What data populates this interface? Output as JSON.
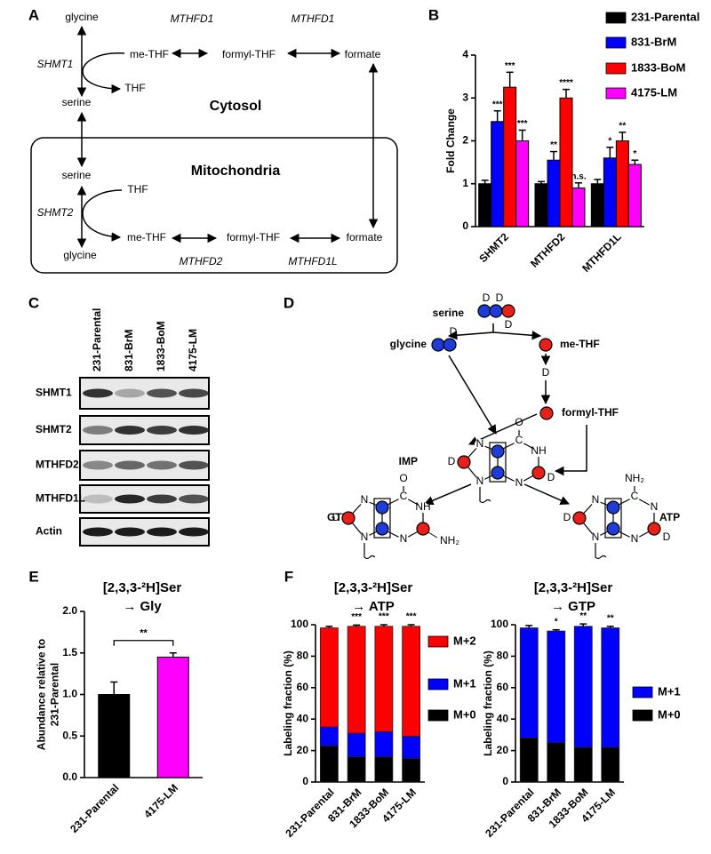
{
  "panel_labels": [
    "A",
    "B",
    "C",
    "D",
    "E",
    "F"
  ],
  "panel_a": {
    "labels": [
      "glycine",
      "me-THF",
      "formyl-THF",
      "formate",
      "MTHFD1",
      "MTHFD1",
      "SHMT1",
      "THF",
      "serine",
      "Cytosol",
      "Mitochondria",
      "serine",
      "THF",
      "SHMT2",
      "me-THF",
      "formyl-THF",
      "formate",
      "glycine",
      "MTHFD2",
      "MTHFD1L"
    ]
  },
  "panel_c": {
    "lanes": [
      "231-Parental",
      "831-BrM",
      "1833-BoM",
      "4175-LM"
    ],
    "proteins": [
      "SHMT1",
      "SHMT2",
      "MTHFD2",
      "MTHFD1L",
      "Actin"
    ]
  },
  "panel_d": {
    "labels": [
      "serine",
      "glycine",
      "me-THF",
      "formyl-THF",
      "IMP",
      "GTP",
      "ATP",
      "D",
      "N",
      "O",
      "C",
      "NH",
      "NH₂"
    ]
  },
  "chart_data": [
    {
      "type": "bar",
      "ylabel": [
        "Fold Change"
      ],
      "categories": [
        "SHMT2",
        "MTHFD2",
        "MTHFD1L"
      ],
      "ylim": [
        0,
        4
      ],
      "yticks": [
        0,
        1,
        2,
        3,
        4
      ],
      "series": [
        {
          "name": "231-Parental",
          "color": "#000000",
          "values": [
            1,
            1,
            1
          ],
          "errors": [
            0.08,
            0.05,
            0.1
          ],
          "annotations": [
            null,
            null,
            null
          ]
        },
        {
          "name": "831-BrM",
          "color": "#0000ff",
          "values": [
            2.45,
            1.55,
            1.6
          ],
          "errors": [
            0.25,
            0.2,
            0.25
          ],
          "annotations": [
            "***",
            "**",
            "*"
          ]
        },
        {
          "name": "1833-BoM",
          "color": "#ff0000",
          "values": [
            3.25,
            3.0,
            2.0
          ],
          "errors": [
            0.35,
            0.2,
            0.2
          ],
          "annotations": [
            "***",
            "****",
            "**"
          ]
        },
        {
          "name": "4175-LM",
          "color": "#ff00ff",
          "values": [
            2.0,
            0.9,
            1.45
          ],
          "errors": [
            0.25,
            0.12,
            0.1
          ],
          "annotations": [
            "***",
            "n.s.",
            "*"
          ]
        }
      ]
    },
    {
      "type": "bar",
      "title": [
        "[2,3,3-²H]Ser",
        "→ Gly"
      ],
      "ylabel": [
        "Abundance relative to",
        "231-Parental"
      ],
      "categories": [
        "231-Parental",
        "4175-LM"
      ],
      "values": [
        1.0,
        1.45
      ],
      "errors": [
        0.15,
        0.05
      ],
      "colors": [
        "#000000",
        "#ff00ff"
      ],
      "ylim": [
        0,
        2.0
      ],
      "yticks": [
        {
          "value": 0,
          "label": "0.0"
        },
        0.5,
        {
          "value": 1,
          "label": "1.0"
        },
        1.5,
        {
          "value": 2,
          "label": "2.0"
        }
      ],
      "comparison": "**"
    },
    {
      "type": "stacked_bar",
      "title": [
        "[2,3,3-²H]Ser",
        "→ ATP"
      ],
      "ylabel": [
        "Labeling fraction (%)"
      ],
      "categories": [
        "231-Parental",
        "831-BrM",
        "1833-BoM",
        "4175-LM"
      ],
      "ylim": [
        0,
        100
      ],
      "yticks": [
        0,
        20,
        40,
        60,
        80,
        100
      ],
      "series": [
        {
          "name": "M+0",
          "color": "#000000",
          "values": [
            23,
            16,
            16,
            15
          ]
        },
        {
          "name": "M+1",
          "color": "#0000ff",
          "values": [
            12,
            15,
            16,
            14
          ]
        },
        {
          "name": "M+2",
          "color": "#ff0000",
          "values": [
            63,
            68,
            67,
            70
          ]
        }
      ],
      "errors": [
        1,
        0.8,
        1,
        1
      ],
      "annotations": [
        null,
        "***",
        "***",
        "***"
      ]
    },
    {
      "type": "stacked_bar",
      "title": [
        "[2,3,3-²H]Ser",
        "→ GTP"
      ],
      "ylabel": [
        "Labeling fraction (%)"
      ],
      "categories": [
        "231-Parental",
        "831-BrM",
        "1833-BoM",
        "4175-LM"
      ],
      "ylim": [
        0,
        100
      ],
      "yticks": [
        0,
        20,
        40,
        60,
        80,
        100
      ],
      "series": [
        {
          "name": "M+0",
          "color": "#000000",
          "values": [
            28,
            25,
            22,
            22
          ]
        },
        {
          "name": "M+1",
          "color": "#0000ff",
          "values": [
            70,
            71,
            77,
            76
          ]
        }
      ],
      "errors": [
        1.5,
        0.8,
        1.5,
        1
      ],
      "annotations": [
        null,
        "*",
        "**",
        "**"
      ]
    }
  ]
}
